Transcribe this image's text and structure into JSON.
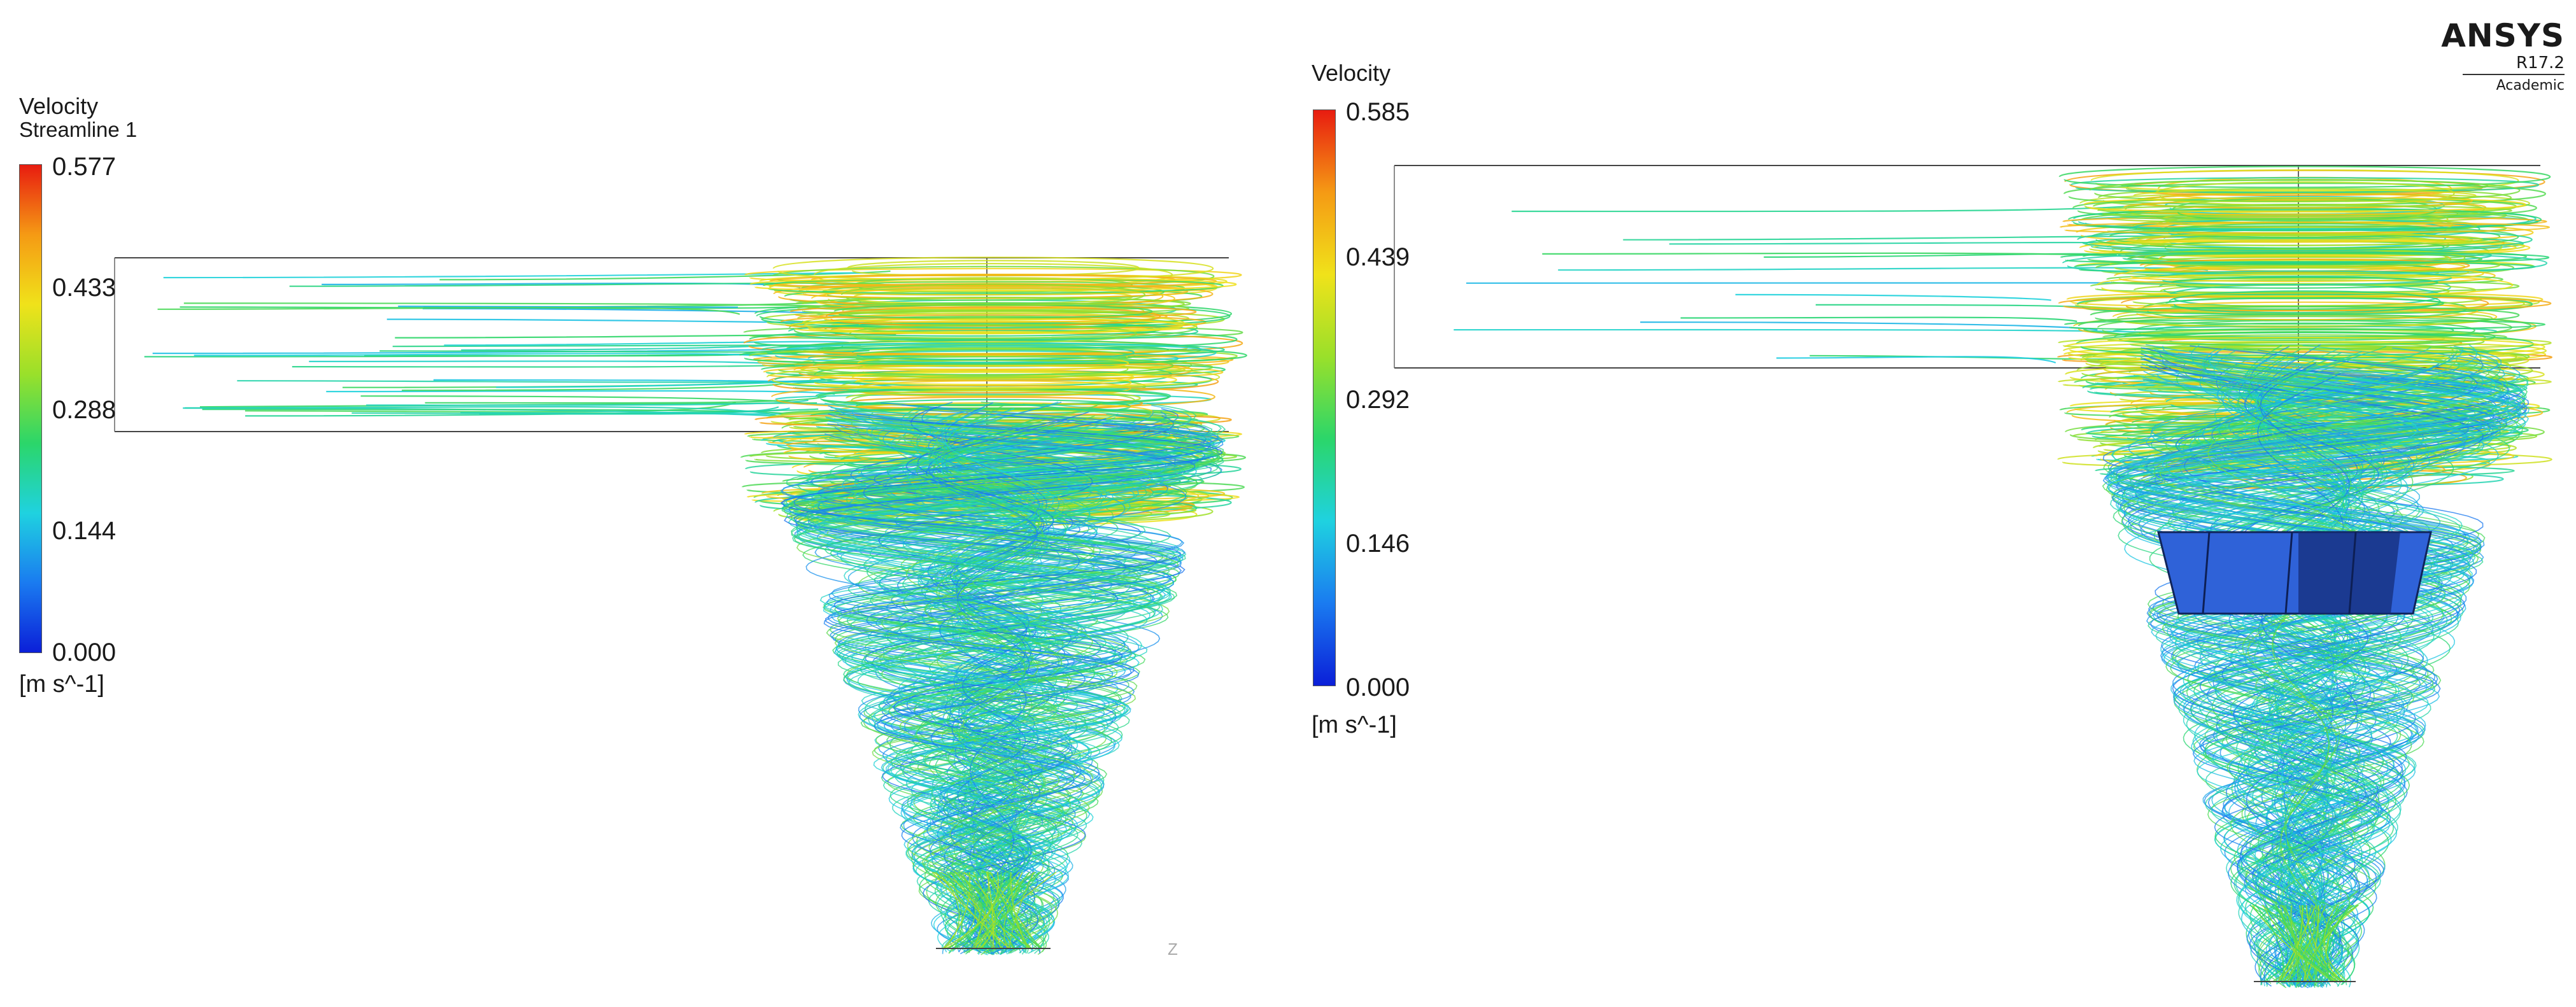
{
  "left_panel": {
    "legend": {
      "title": "Velocity",
      "subtitle": "Streamline 1",
      "max": "0.577",
      "ticks": [
        "0.577",
        "0.433",
        "0.288",
        "0.144",
        "0.000"
      ],
      "unit": "[m s^-1]"
    },
    "axis_label": "Z"
  },
  "right_panel": {
    "legend": {
      "title": "Velocity",
      "max": "0.585",
      "ticks": [
        "0.585",
        "0.439",
        "0.292",
        "0.146",
        "0.000"
      ],
      "unit": "[m s^-1]"
    },
    "brand": {
      "name": "ANSYS",
      "version": "R17.2",
      "edition": "Academic"
    }
  },
  "colormap": [
    "#0b1fd8",
    "#1a7bf0",
    "#1fd2e0",
    "#2bd66a",
    "#9ae02a",
    "#f0e21a",
    "#f59a14",
    "#e81c10"
  ]
}
